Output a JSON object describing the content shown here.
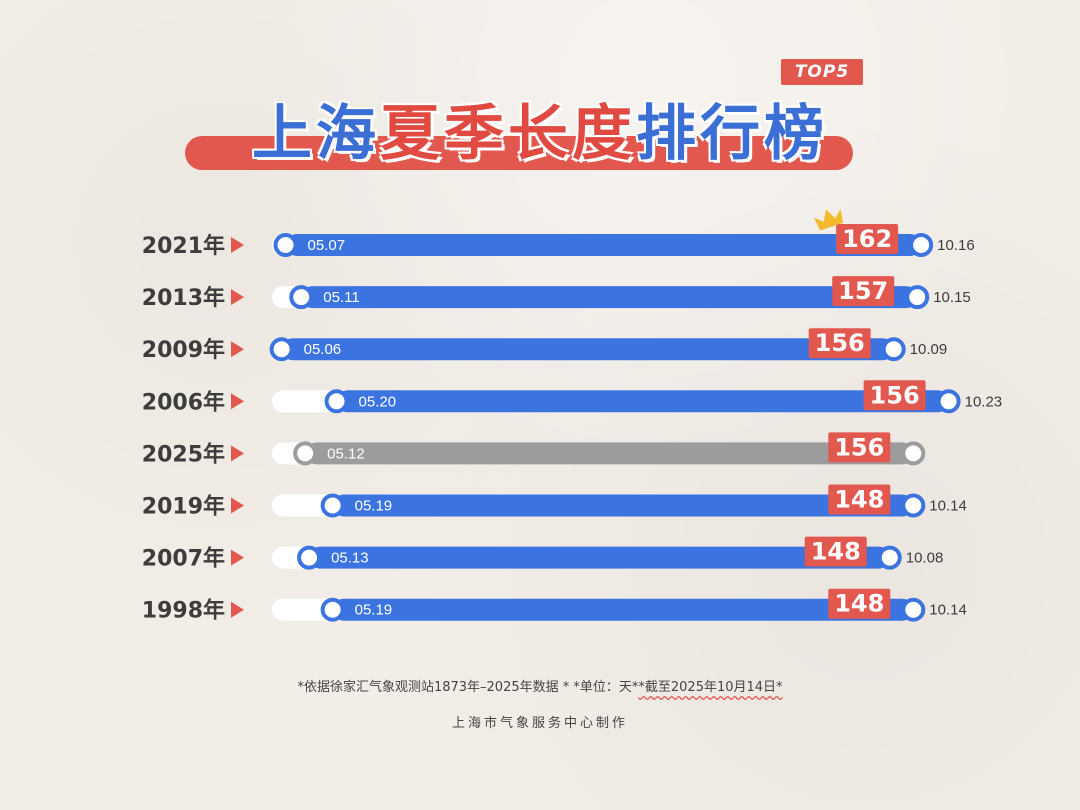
{
  "header": {
    "badge": "TOP5",
    "title_part1": "上海",
    "title_part2": "夏季长度",
    "title_part3": "排行榜"
  },
  "chart_data": {
    "type": "bar",
    "categories": [
      "2021年",
      "2013年",
      "2009年",
      "2006年",
      "2025年",
      "2019年",
      "2007年",
      "1998年"
    ],
    "values": [
      162,
      157,
      156,
      156,
      156,
      148,
      148,
      148
    ],
    "start_dates": [
      "05.07",
      "05.11",
      "05.06",
      "05.20",
      "05.12",
      "05.19",
      "05.13",
      "05.19"
    ],
    "end_dates": [
      "10.16",
      "10.15",
      "10.09",
      "10.23",
      "",
      "10.14",
      "10.08",
      "10.14"
    ],
    "x_domain": [
      "05.01",
      "10.31"
    ],
    "ongoing_index": 4,
    "top_index": 0,
    "colors": {
      "bar": "#3b74e0",
      "bar_ongoing": "#9c9c9c",
      "track": "#ffffff",
      "value_box": "#e2584f",
      "arrow": "#e2584f",
      "crown": "#f4b92d"
    }
  },
  "footer": {
    "note_main": "*依据徐家汇气象观测站1873年–2025年数据 *  *单位：天*",
    "note_underlined": "*截至2025年10月14日*",
    "credit": "上海市气象服务中心制作"
  }
}
